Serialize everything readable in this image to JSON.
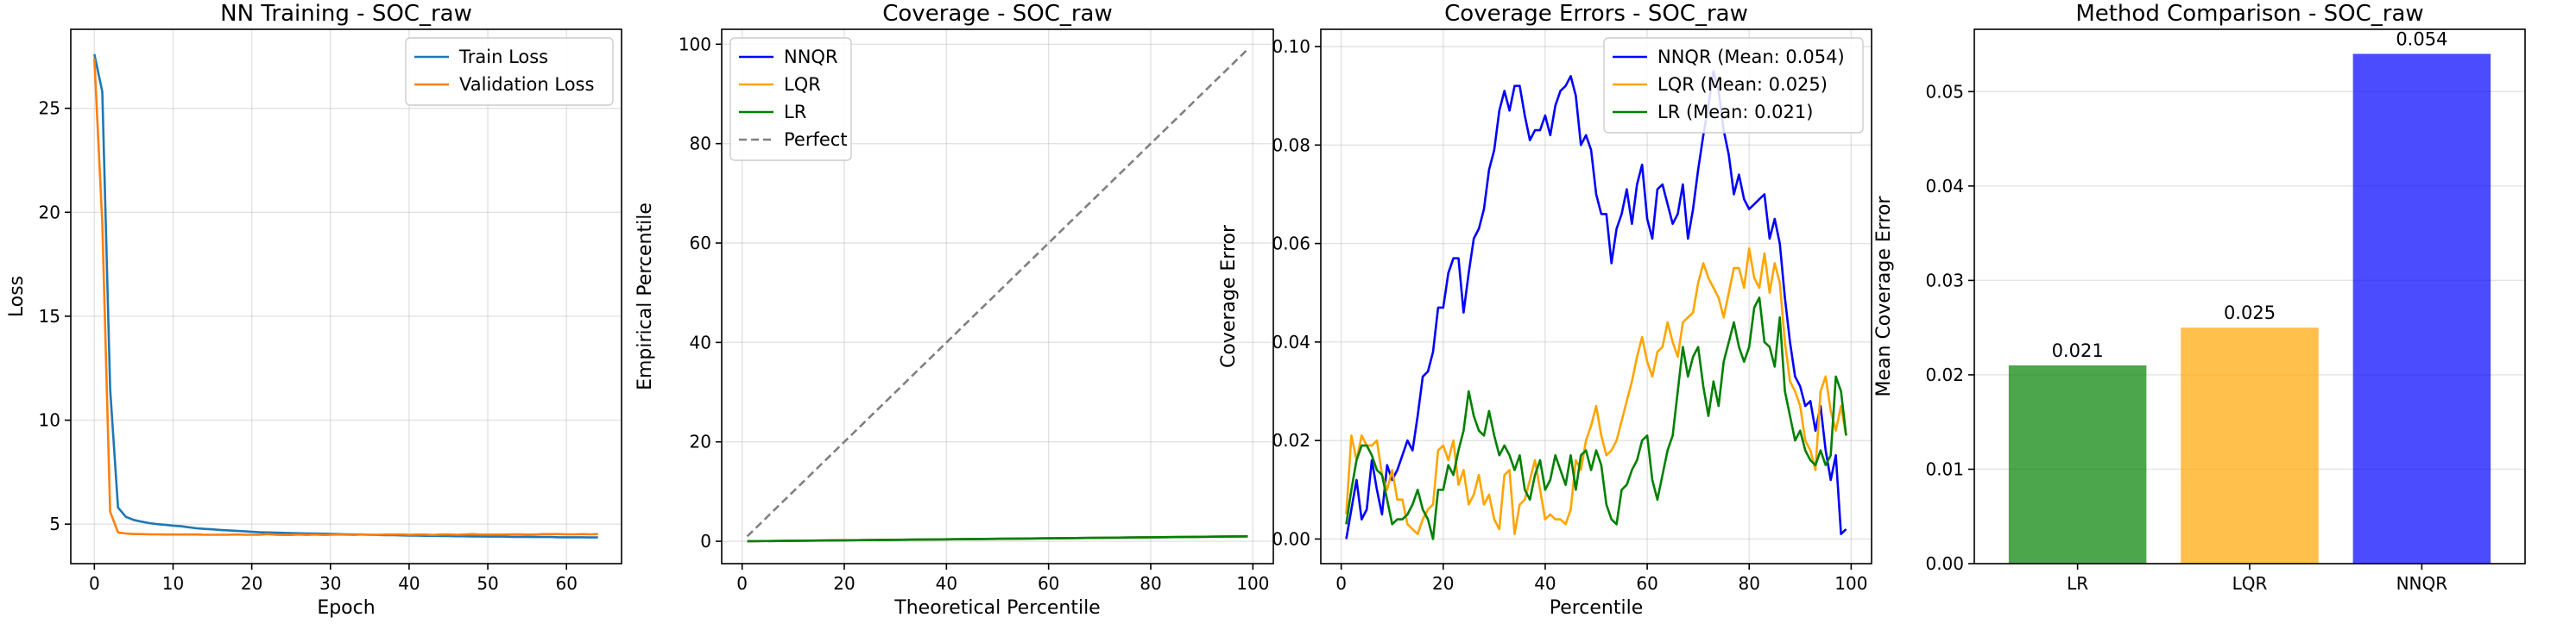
{
  "chart_data": [
    {
      "type": "line",
      "title": "NN Training - SOC_raw",
      "xlabel": "Epoch",
      "ylabel": "Loss",
      "xlim": [
        -3,
        67
      ],
      "ylim": [
        3.1,
        28.8
      ],
      "xticks": [
        0,
        10,
        20,
        30,
        40,
        50,
        60
      ],
      "yticks": [
        5,
        10,
        15,
        20,
        25
      ],
      "grid": true,
      "legend": "top-right",
      "series": [
        {
          "name": "Train Loss",
          "color": "#1f77b4",
          "x": [
            0,
            1,
            2,
            3,
            4,
            5,
            6,
            7,
            8,
            9,
            10,
            11,
            12,
            13,
            14,
            15,
            16,
            17,
            18,
            19,
            20,
            21,
            22,
            23,
            24,
            25,
            26,
            27,
            28,
            29,
            30,
            31,
            32,
            33,
            34,
            35,
            36,
            37,
            38,
            39,
            40,
            41,
            42,
            43,
            44,
            45,
            46,
            47,
            48,
            49,
            50,
            51,
            52,
            53,
            54,
            55,
            56,
            57,
            58,
            59,
            60,
            61,
            62,
            63,
            64
          ],
          "y": [
            27.6,
            25.8,
            11.5,
            5.8,
            5.35,
            5.2,
            5.12,
            5.05,
            5.0,
            4.97,
            4.93,
            4.9,
            4.85,
            4.8,
            4.77,
            4.75,
            4.72,
            4.7,
            4.68,
            4.66,
            4.63,
            4.61,
            4.6,
            4.59,
            4.58,
            4.57,
            4.56,
            4.55,
            4.55,
            4.54,
            4.53,
            4.52,
            4.51,
            4.5,
            4.5,
            4.49,
            4.48,
            4.47,
            4.47,
            4.46,
            4.45,
            4.45,
            4.44,
            4.44,
            4.43,
            4.43,
            4.42,
            4.42,
            4.41,
            4.41,
            4.4,
            4.4,
            4.4,
            4.39,
            4.39,
            4.39,
            4.38,
            4.38,
            4.38,
            4.37,
            4.37,
            4.37,
            4.37,
            4.36,
            4.36
          ]
        },
        {
          "name": "Validation Loss",
          "color": "#ff7f0e",
          "x": [
            0,
            1,
            2,
            3,
            4,
            5,
            6,
            7,
            8,
            9,
            10,
            11,
            12,
            13,
            14,
            15,
            16,
            17,
            18,
            19,
            20,
            21,
            22,
            23,
            24,
            25,
            26,
            27,
            28,
            29,
            30,
            31,
            32,
            33,
            34,
            35,
            36,
            37,
            38,
            39,
            40,
            41,
            42,
            43,
            44,
            45,
            46,
            47,
            48,
            49,
            50,
            51,
            52,
            53,
            54,
            55,
            56,
            57,
            58,
            59,
            60,
            61,
            62,
            63,
            64
          ],
          "y": [
            27.4,
            19.5,
            5.6,
            4.6,
            4.55,
            4.52,
            4.52,
            4.51,
            4.51,
            4.5,
            4.5,
            4.5,
            4.5,
            4.5,
            4.49,
            4.49,
            4.49,
            4.49,
            4.5,
            4.49,
            4.49,
            4.49,
            4.52,
            4.49,
            4.48,
            4.48,
            4.5,
            4.48,
            4.5,
            4.48,
            4.49,
            4.5,
            4.49,
            4.48,
            4.5,
            4.49,
            4.49,
            4.5,
            4.5,
            4.51,
            4.49,
            4.5,
            4.5,
            4.48,
            4.5,
            4.51,
            4.49,
            4.5,
            4.52,
            4.5,
            4.5,
            4.5,
            4.5,
            4.51,
            4.51,
            4.5,
            4.5,
            4.52,
            4.52,
            4.52,
            4.51,
            4.51,
            4.52,
            4.51,
            4.52
          ]
        }
      ]
    },
    {
      "type": "line",
      "title": "Coverage - SOC_raw",
      "xlabel": "Theoretical Percentile",
      "ylabel": "Empirical Percentile",
      "xlim": [
        -4,
        104
      ],
      "ylim": [
        -4.5,
        103
      ],
      "xticks": [
        0,
        20,
        40,
        60,
        80,
        100
      ],
      "yticks": [
        0,
        20,
        40,
        60,
        80,
        100
      ],
      "grid": true,
      "legend": "top-left",
      "series": [
        {
          "name": "NNQR",
          "color": "#0000ff",
          "x": [
            1,
            99
          ],
          "y": [
            0,
            1
          ]
        },
        {
          "name": "LQR",
          "color": "#ffa500",
          "x": [
            1,
            99
          ],
          "y": [
            0,
            1
          ]
        },
        {
          "name": "LR",
          "color": "#008000",
          "x": [
            1,
            99
          ],
          "y": [
            0,
            1
          ]
        },
        {
          "name": "Perfect",
          "color": "#808080",
          "dashed": true,
          "x": [
            1,
            99
          ],
          "y": [
            1,
            99
          ]
        }
      ]
    },
    {
      "type": "line",
      "title": "Coverage Errors - SOC_raw",
      "xlabel": "Percentile",
      "ylabel": "Coverage Error",
      "xlim": [
        -4,
        104
      ],
      "ylim": [
        -0.005,
        0.1035
      ],
      "xticks": [
        0,
        20,
        40,
        60,
        80,
        100
      ],
      "yticks": [
        0.0,
        0.02,
        0.04,
        0.06,
        0.08,
        0.1
      ],
      "ytick_labels": [
        "0.00",
        "0.02",
        "0.04",
        "0.06",
        "0.08",
        "0.10"
      ],
      "grid": true,
      "legend": "top-right",
      "series": [
        {
          "name": "NNQR (Mean: 0.054)",
          "color": "#0000ff",
          "x": [
            1,
            2,
            3,
            4,
            5,
            6,
            7,
            8,
            9,
            10,
            11,
            12,
            13,
            14,
            15,
            16,
            17,
            18,
            19,
            20,
            21,
            22,
            23,
            24,
            25,
            26,
            27,
            28,
            29,
            30,
            31,
            32,
            33,
            34,
            35,
            36,
            37,
            38,
            39,
            40,
            41,
            42,
            43,
            44,
            45,
            46,
            47,
            48,
            49,
            50,
            51,
            52,
            53,
            54,
            55,
            56,
            57,
            58,
            59,
            60,
            61,
            62,
            63,
            64,
            65,
            66,
            67,
            68,
            69,
            70,
            71,
            72,
            73,
            74,
            75,
            76,
            77,
            78,
            79,
            80,
            81,
            82,
            83,
            84,
            85,
            86,
            87,
            88,
            89,
            90,
            91,
            92,
            93,
            94,
            95,
            96,
            97,
            98,
            99
          ],
          "y": [
            0.0,
            0.006,
            0.012,
            0.004,
            0.006,
            0.016,
            0.01,
            0.005,
            0.015,
            0.012,
            0.014,
            0.017,
            0.02,
            0.018,
            0.025,
            0.033,
            0.034,
            0.038,
            0.047,
            0.047,
            0.054,
            0.057,
            0.057,
            0.046,
            0.054,
            0.061,
            0.063,
            0.067,
            0.075,
            0.079,
            0.087,
            0.091,
            0.087,
            0.092,
            0.092,
            0.086,
            0.081,
            0.083,
            0.083,
            0.086,
            0.082,
            0.088,
            0.091,
            0.092,
            0.094,
            0.09,
            0.08,
            0.082,
            0.079,
            0.07,
            0.066,
            0.066,
            0.056,
            0.063,
            0.066,
            0.071,
            0.064,
            0.072,
            0.076,
            0.065,
            0.061,
            0.071,
            0.072,
            0.068,
            0.064,
            0.066,
            0.072,
            0.061,
            0.067,
            0.075,
            0.082,
            0.088,
            0.095,
            0.091,
            0.083,
            0.078,
            0.07,
            0.074,
            0.069,
            0.067,
            0.068,
            0.069,
            0.07,
            0.061,
            0.065,
            0.06,
            0.049,
            0.04,
            0.033,
            0.031,
            0.027,
            0.028,
            0.022,
            0.027,
            0.018,
            0.012,
            0.017,
            0.001,
            0.002
          ]
        },
        {
          "name": "LQR (Mean: 0.025)",
          "color": "#ffa500",
          "x": [
            1,
            2,
            3,
            4,
            5,
            6,
            7,
            8,
            9,
            10,
            11,
            12,
            13,
            14,
            15,
            16,
            17,
            18,
            19,
            20,
            21,
            22,
            23,
            24,
            25,
            26,
            27,
            28,
            29,
            30,
            31,
            32,
            33,
            34,
            35,
            36,
            37,
            38,
            39,
            40,
            41,
            42,
            43,
            44,
            45,
            46,
            47,
            48,
            49,
            50,
            51,
            52,
            53,
            54,
            55,
            56,
            57,
            58,
            59,
            60,
            61,
            62,
            63,
            64,
            65,
            66,
            67,
            68,
            69,
            70,
            71,
            72,
            73,
            74,
            75,
            76,
            77,
            78,
            79,
            80,
            81,
            82,
            83,
            84,
            85,
            86,
            87,
            88,
            89,
            90,
            91,
            92,
            93,
            94,
            95,
            96,
            97,
            98,
            99
          ],
          "y": [
            0.005,
            0.021,
            0.016,
            0.021,
            0.019,
            0.019,
            0.02,
            0.013,
            0.01,
            0.014,
            0.008,
            0.008,
            0.003,
            0.002,
            0.001,
            0.004,
            0.006,
            0.007,
            0.018,
            0.019,
            0.016,
            0.02,
            0.011,
            0.014,
            0.007,
            0.009,
            0.013,
            0.007,
            0.009,
            0.004,
            0.002,
            0.013,
            0.014,
            0.001,
            0.007,
            0.008,
            0.012,
            0.016,
            0.01,
            0.004,
            0.005,
            0.004,
            0.004,
            0.003,
            0.006,
            0.016,
            0.014,
            0.02,
            0.023,
            0.027,
            0.021,
            0.017,
            0.018,
            0.02,
            0.024,
            0.028,
            0.032,
            0.037,
            0.041,
            0.036,
            0.033,
            0.038,
            0.039,
            0.044,
            0.04,
            0.037,
            0.044,
            0.045,
            0.046,
            0.052,
            0.056,
            0.053,
            0.051,
            0.049,
            0.045,
            0.05,
            0.055,
            0.055,
            0.051,
            0.059,
            0.053,
            0.051,
            0.058,
            0.05,
            0.056,
            0.052,
            0.04,
            0.032,
            0.03,
            0.027,
            0.02,
            0.018,
            0.014,
            0.03,
            0.033,
            0.026,
            0.022,
            0.027,
            0.021
          ]
        },
        {
          "name": "LR (Mean: 0.021)",
          "color": "#008000",
          "x": [
            1,
            2,
            3,
            4,
            5,
            6,
            7,
            8,
            9,
            10,
            11,
            12,
            13,
            14,
            15,
            16,
            17,
            18,
            19,
            20,
            21,
            22,
            23,
            24,
            25,
            26,
            27,
            28,
            29,
            30,
            31,
            32,
            33,
            34,
            35,
            36,
            37,
            38,
            39,
            40,
            41,
            42,
            43,
            44,
            45,
            46,
            47,
            48,
            49,
            50,
            51,
            52,
            53,
            54,
            55,
            56,
            57,
            58,
            59,
            60,
            61,
            62,
            63,
            64,
            65,
            66,
            67,
            68,
            69,
            70,
            71,
            72,
            73,
            74,
            75,
            76,
            77,
            78,
            79,
            80,
            81,
            82,
            83,
            84,
            85,
            86,
            87,
            88,
            89,
            90,
            91,
            92,
            93,
            94,
            95,
            96,
            97,
            98,
            99
          ],
          "y": [
            0.003,
            0.01,
            0.016,
            0.019,
            0.019,
            0.017,
            0.014,
            0.013,
            0.008,
            0.003,
            0.004,
            0.004,
            0.005,
            0.007,
            0.01,
            0.006,
            0.004,
            0.0,
            0.01,
            0.01,
            0.015,
            0.013,
            0.018,
            0.022,
            0.03,
            0.025,
            0.022,
            0.021,
            0.026,
            0.021,
            0.017,
            0.019,
            0.017,
            0.014,
            0.017,
            0.01,
            0.008,
            0.013,
            0.016,
            0.01,
            0.012,
            0.017,
            0.014,
            0.011,
            0.017,
            0.01,
            0.017,
            0.018,
            0.014,
            0.018,
            0.015,
            0.007,
            0.004,
            0.003,
            0.01,
            0.011,
            0.014,
            0.016,
            0.02,
            0.021,
            0.012,
            0.008,
            0.013,
            0.018,
            0.021,
            0.03,
            0.039,
            0.033,
            0.037,
            0.039,
            0.031,
            0.025,
            0.032,
            0.027,
            0.036,
            0.04,
            0.044,
            0.039,
            0.036,
            0.039,
            0.047,
            0.049,
            0.04,
            0.039,
            0.035,
            0.045,
            0.03,
            0.025,
            0.02,
            0.022,
            0.018,
            0.016,
            0.015,
            0.018,
            0.015,
            0.017,
            0.033,
            0.03,
            0.021
          ]
        }
      ]
    },
    {
      "type": "bar",
      "title": "Method Comparison - SOC_raw",
      "xlabel": "",
      "ylabel": "Mean Coverage Error",
      "categories": [
        "LR",
        "LQR",
        "NNQR"
      ],
      "values": [
        0.021,
        0.025,
        0.054
      ],
      "value_labels": [
        "0.021",
        "0.025",
        "0.054"
      ],
      "colors": [
        "#008000",
        "#ffa500",
        "#0000ff"
      ],
      "ylim": [
        0,
        0.0566
      ],
      "yticks": [
        0.0,
        0.01,
        0.02,
        0.03,
        0.04,
        0.05
      ],
      "ytick_labels": [
        "0.00",
        "0.01",
        "0.02",
        "0.03",
        "0.04",
        "0.05"
      ],
      "grid": true
    }
  ]
}
